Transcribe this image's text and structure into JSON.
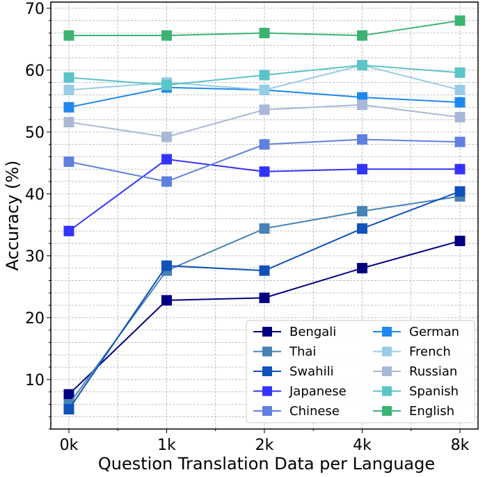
{
  "chart_data": {
    "type": "line",
    "xlabel": "Question Translation Data per Language",
    "ylabel": "Accuracy (%)",
    "categories": [
      "0k",
      "1k",
      "2k",
      "4k",
      "8k"
    ],
    "ylim": [
      2,
      71
    ],
    "yticks": [
      "10",
      "20",
      "30",
      "40",
      "50",
      "60",
      "70"
    ],
    "grid": true,
    "legend_position": "lower-right",
    "series": [
      {
        "name": "Bengali",
        "color": "#000080",
        "values": [
          7.6,
          22.8,
          23.2,
          28.0,
          32.4
        ]
      },
      {
        "name": "Thai",
        "color": "#4682B4",
        "values": [
          6.0,
          27.6,
          34.4,
          37.2,
          39.6
        ]
      },
      {
        "name": "Swahili",
        "color": "#0F52BA",
        "values": [
          5.2,
          28.4,
          27.6,
          34.4,
          40.4
        ]
      },
      {
        "name": "Japanese",
        "color": "#3333FF",
        "values": [
          34.0,
          45.6,
          43.6,
          44.0,
          44.0
        ]
      },
      {
        "name": "Chinese",
        "color": "#6080E0",
        "values": [
          45.2,
          42.0,
          48.0,
          48.8,
          48.4
        ]
      },
      {
        "name": "German",
        "color": "#1E88F0",
        "values": [
          54.0,
          57.2,
          56.8,
          55.6,
          54.8
        ]
      },
      {
        "name": "French",
        "color": "#99CCE6",
        "values": [
          56.8,
          58.0,
          56.8,
          60.8,
          56.8
        ]
      },
      {
        "name": "Russian",
        "color": "#A8B8D6",
        "values": [
          51.6,
          49.2,
          53.6,
          54.4,
          52.4
        ]
      },
      {
        "name": "Spanish",
        "color": "#5BC4C8",
        "values": [
          58.8,
          57.6,
          59.2,
          60.8,
          59.6
        ]
      },
      {
        "name": "English",
        "color": "#3CB371",
        "values": [
          65.6,
          65.6,
          66.0,
          65.6,
          68.0
        ]
      }
    ]
  }
}
